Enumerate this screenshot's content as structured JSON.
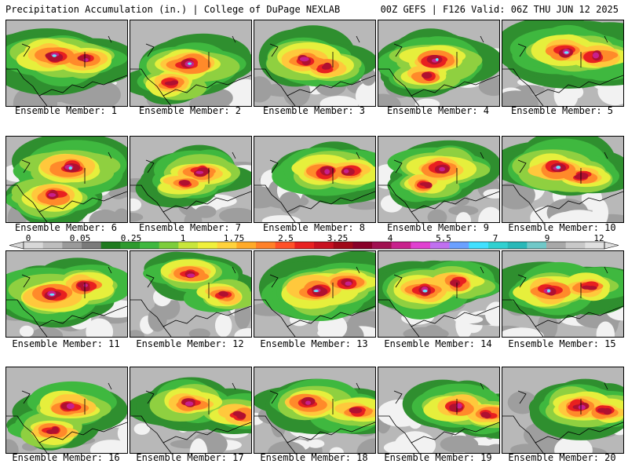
{
  "header": {
    "left": "Precipitation Accumulation (in.) | College of DuPage NEXLAB",
    "right": "00Z GEFS | F126 Valid: 06Z THU JUN 12 2025"
  },
  "member_label_prefix": "Ensemble Member: ",
  "members": [
    1,
    2,
    3,
    4,
    5,
    6,
    7,
    8,
    9,
    10,
    11,
    12,
    13,
    14,
    15,
    16,
    17,
    18,
    19,
    20
  ],
  "colorbar": {
    "labels": [
      "0",
      "0.05",
      "0.25",
      "1",
      "1.75",
      "2.5",
      "3.25",
      "4",
      "5.5",
      "7",
      "9",
      "12"
    ],
    "colors": [
      "#d8d8d8",
      "#bdbdbd",
      "#9a9a9a",
      "#7a7a7a",
      "#1e7a1e",
      "#2e9a2e",
      "#3fb83f",
      "#7ccd3c",
      "#c8e63c",
      "#f0f03c",
      "#ffd23c",
      "#ffaa28",
      "#ff8028",
      "#ff5028",
      "#e82020",
      "#c81020",
      "#a00818",
      "#880028",
      "#a01050",
      "#c8208c",
      "#e040d0",
      "#c070f0",
      "#6aa0ff",
      "#40e0ff",
      "#30d0d0",
      "#28b8b8",
      "#70c8c8",
      "#a8a8a8",
      "#c8c8c8",
      "#e0e0e0"
    ]
  },
  "intensity_colors": [
    "#f2f2f2",
    "#cfcfcf",
    "#9e9e9e",
    "#2f8f2f",
    "#3fb83f",
    "#8fd040",
    "#e6ef3c",
    "#ffc83c",
    "#ff8a2a",
    "#e82020",
    "#b01030",
    "#c8208c",
    "#6ae0ff"
  ]
}
